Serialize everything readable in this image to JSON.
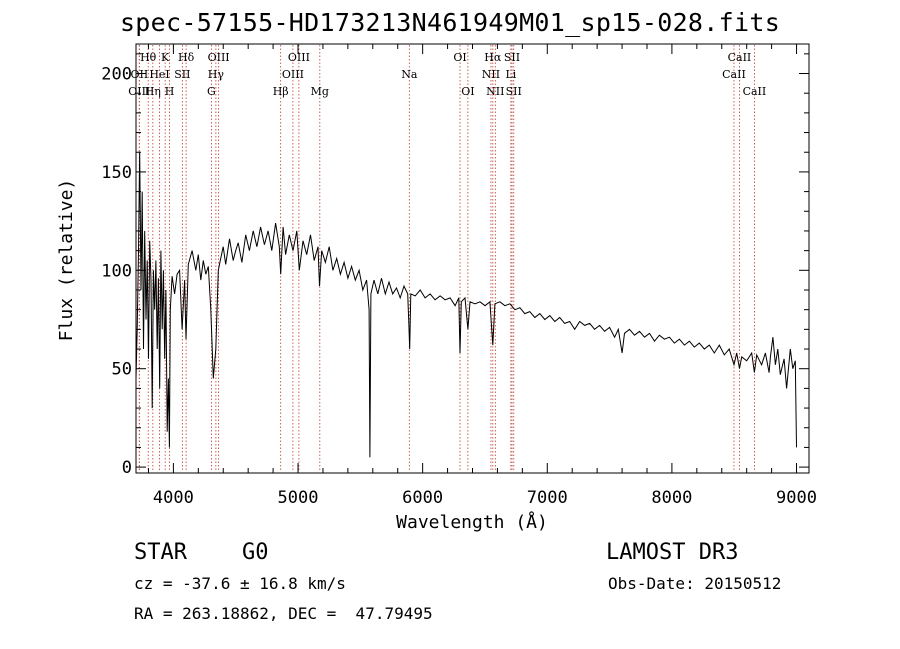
{
  "title": "spec-57155-HD173213N461949M01_sp15-028.fits",
  "info": {
    "object_class": "STAR",
    "subclass": "G0",
    "survey": "LAMOST DR3",
    "cz": "cz = -37.6 ± 16.8 km/s",
    "obs_date": "Obs-Date: 20150512",
    "radec": "RA = 263.18862, DEC =  47.79495"
  },
  "chart_data": {
    "type": "line",
    "title": "spec-57155-HD173213N461949M01_sp15-028.fits",
    "xlabel": "Wavelength (Å)",
    "ylabel": "Flux (relative)",
    "xlim": [
      3700,
      9100
    ],
    "ylim": [
      -3,
      215
    ],
    "xticks": [
      4000,
      5000,
      6000,
      7000,
      8000,
      9000
    ],
    "yticks": [
      0,
      50,
      100,
      150,
      200
    ],
    "spectrum": [
      [
        3700,
        45
      ],
      [
        3710,
        70
      ],
      [
        3720,
        110
      ],
      [
        3730,
        160
      ],
      [
        3740,
        90
      ],
      [
        3750,
        140
      ],
      [
        3760,
        60
      ],
      [
        3770,
        120
      ],
      [
        3780,
        75
      ],
      [
        3790,
        105
      ],
      [
        3800,
        55
      ],
      [
        3810,
        115
      ],
      [
        3820,
        95
      ],
      [
        3830,
        30
      ],
      [
        3840,
        100
      ],
      [
        3850,
        80
      ],
      [
        3860,
        105
      ],
      [
        3870,
        60
      ],
      [
        3880,
        96
      ],
      [
        3890,
        40
      ],
      [
        3900,
        110
      ],
      [
        3910,
        70
      ],
      [
        3920,
        100
      ],
      [
        3930,
        55
      ],
      [
        3940,
        90
      ],
      [
        3950,
        18
      ],
      [
        3960,
        45
      ],
      [
        3968,
        10
      ],
      [
        3975,
        80
      ],
      [
        3990,
        97
      ],
      [
        4010,
        88
      ],
      [
        4030,
        98
      ],
      [
        4050,
        100
      ],
      [
        4070,
        70
      ],
      [
        4090,
        95
      ],
      [
        4101,
        65
      ],
      [
        4120,
        103
      ],
      [
        4150,
        110
      ],
      [
        4180,
        100
      ],
      [
        4200,
        108
      ],
      [
        4220,
        95
      ],
      [
        4240,
        105
      ],
      [
        4260,
        98
      ],
      [
        4280,
        102
      ],
      [
        4300,
        80
      ],
      [
        4320,
        45
      ],
      [
        4340,
        60
      ],
      [
        4360,
        100
      ],
      [
        4380,
        106
      ],
      [
        4400,
        112
      ],
      [
        4420,
        103
      ],
      [
        4450,
        116
      ],
      [
        4480,
        105
      ],
      [
        4500,
        110
      ],
      [
        4520,
        114
      ],
      [
        4550,
        104
      ],
      [
        4580,
        118
      ],
      [
        4610,
        110
      ],
      [
        4640,
        120
      ],
      [
        4670,
        112
      ],
      [
        4700,
        122
      ],
      [
        4730,
        113
      ],
      [
        4760,
        120
      ],
      [
        4790,
        110
      ],
      [
        4820,
        124
      ],
      [
        4850,
        112
      ],
      [
        4861,
        98
      ],
      [
        4880,
        122
      ],
      [
        4900,
        108
      ],
      [
        4930,
        118
      ],
      [
        4960,
        110
      ],
      [
        4990,
        120
      ],
      [
        5010,
        100
      ],
      [
        5040,
        115
      ],
      [
        5070,
        108
      ],
      [
        5100,
        118
      ],
      [
        5130,
        105
      ],
      [
        5160,
        112
      ],
      [
        5172,
        92
      ],
      [
        5190,
        110
      ],
      [
        5220,
        104
      ],
      [
        5250,
        112
      ],
      [
        5280,
        100
      ],
      [
        5310,
        106
      ],
      [
        5340,
        98
      ],
      [
        5370,
        104
      ],
      [
        5400,
        96
      ],
      [
        5430,
        102
      ],
      [
        5460,
        95
      ],
      [
        5490,
        100
      ],
      [
        5520,
        90
      ],
      [
        5550,
        95
      ],
      [
        5570,
        80
      ],
      [
        5577,
        5
      ],
      [
        5585,
        88
      ],
      [
        5610,
        95
      ],
      [
        5640,
        88
      ],
      [
        5670,
        96
      ],
      [
        5700,
        88
      ],
      [
        5730,
        94
      ],
      [
        5760,
        88
      ],
      [
        5790,
        91
      ],
      [
        5820,
        86
      ],
      [
        5850,
        92
      ],
      [
        5880,
        88
      ],
      [
        5890,
        72
      ],
      [
        5896,
        60
      ],
      [
        5905,
        88
      ],
      [
        5940,
        87
      ],
      [
        5980,
        90
      ],
      [
        6020,
        86
      ],
      [
        6060,
        88
      ],
      [
        6100,
        85
      ],
      [
        6140,
        87
      ],
      [
        6180,
        85
      ],
      [
        6220,
        86
      ],
      [
        6260,
        82
      ],
      [
        6290,
        86
      ],
      [
        6300,
        58
      ],
      [
        6310,
        84
      ],
      [
        6340,
        86
      ],
      [
        6363,
        70
      ],
      [
        6380,
        84
      ],
      [
        6420,
        83
      ],
      [
        6460,
        84
      ],
      [
        6500,
        82
      ],
      [
        6540,
        84
      ],
      [
        6563,
        62
      ],
      [
        6580,
        83
      ],
      [
        6620,
        84
      ],
      [
        6660,
        82
      ],
      [
        6700,
        83
      ],
      [
        6740,
        80
      ],
      [
        6780,
        81
      ],
      [
        6820,
        78
      ],
      [
        6860,
        79
      ],
      [
        6900,
        76
      ],
      [
        6940,
        78
      ],
      [
        6980,
        75
      ],
      [
        7020,
        77
      ],
      [
        7060,
        74
      ],
      [
        7100,
        76
      ],
      [
        7140,
        73
      ],
      [
        7180,
        74
      ],
      [
        7220,
        70
      ],
      [
        7260,
        74
      ],
      [
        7300,
        72
      ],
      [
        7340,
        73
      ],
      [
        7380,
        70
      ],
      [
        7420,
        72
      ],
      [
        7460,
        69
      ],
      [
        7500,
        71
      ],
      [
        7540,
        66
      ],
      [
        7570,
        70
      ],
      [
        7600,
        58
      ],
      [
        7620,
        68
      ],
      [
        7660,
        70
      ],
      [
        7700,
        67
      ],
      [
        7740,
        69
      ],
      [
        7780,
        66
      ],
      [
        7820,
        68
      ],
      [
        7860,
        64
      ],
      [
        7900,
        67
      ],
      [
        7940,
        65
      ],
      [
        7980,
        66
      ],
      [
        8020,
        63
      ],
      [
        8060,
        65
      ],
      [
        8100,
        62
      ],
      [
        8140,
        64
      ],
      [
        8180,
        61
      ],
      [
        8220,
        63
      ],
      [
        8260,
        60
      ],
      [
        8300,
        62
      ],
      [
        8340,
        58
      ],
      [
        8380,
        62
      ],
      [
        8420,
        57
      ],
      [
        8460,
        60
      ],
      [
        8498,
        52
      ],
      [
        8520,
        58
      ],
      [
        8542,
        50
      ],
      [
        8560,
        56
      ],
      [
        8600,
        54
      ],
      [
        8640,
        58
      ],
      [
        8662,
        48
      ],
      [
        8680,
        57
      ],
      [
        8720,
        52
      ],
      [
        8750,
        58
      ],
      [
        8780,
        48
      ],
      [
        8790,
        56
      ],
      [
        8810,
        66
      ],
      [
        8830,
        52
      ],
      [
        8850,
        60
      ],
      [
        8870,
        47
      ],
      [
        8900,
        55
      ],
      [
        8920,
        40
      ],
      [
        8950,
        60
      ],
      [
        8970,
        50
      ],
      [
        8990,
        54
      ],
      [
        9000,
        10
      ]
    ],
    "lines": [
      {
        "label": "Hθ",
        "wave": 3798,
        "row": 1
      },
      {
        "label": "OII",
        "wave": 3727,
        "row": 2
      },
      {
        "label": "OIII",
        "wave": 3726,
        "row": 3
      },
      {
        "label": "HeI",
        "wave": 3889,
        "row": 2
      },
      {
        "label": "Hη",
        "wave": 3835,
        "row": 3
      },
      {
        "label": "K",
        "wave": 3934,
        "row": 1
      },
      {
        "label": "SII",
        "wave": 4072,
        "row": 2
      },
      {
        "label": "H",
        "wave": 3969,
        "row": 3
      },
      {
        "label": "Hδ",
        "wave": 4102,
        "row": 1
      },
      {
        "label": "OIII",
        "wave": 4363,
        "row": 1
      },
      {
        "label": "Hγ",
        "wave": 4341,
        "row": 2
      },
      {
        "label": "G",
        "wave": 4305,
        "row": 3
      },
      {
        "label": "Hβ",
        "wave": 4861,
        "row": 3
      },
      {
        "label": "OIII",
        "wave": 5007,
        "row": 1
      },
      {
        "label": "OIII",
        "wave": 4959,
        "row": 2
      },
      {
        "label": "Mg",
        "wave": 5175,
        "row": 3
      },
      {
        "label": "Na",
        "wave": 5893,
        "row": 2
      },
      {
        "label": "OI",
        "wave": 6300,
        "row": 1
      },
      {
        "label": "OI",
        "wave": 6363,
        "row": 3
      },
      {
        "label": "Hα",
        "wave": 6563,
        "row": 1
      },
      {
        "label": "SII",
        "wave": 6717,
        "row": 1
      },
      {
        "label": "NII",
        "wave": 6548,
        "row": 2
      },
      {
        "label": "Li",
        "wave": 6708,
        "row": 2
      },
      {
        "label": "NII",
        "wave": 6583,
        "row": 3
      },
      {
        "label": "SII",
        "wave": 6731,
        "row": 3
      },
      {
        "label": "CaII",
        "wave": 8542,
        "row": 1
      },
      {
        "label": "CaII",
        "wave": 8498,
        "row": 2
      },
      {
        "label": "CaII",
        "wave": 8662,
        "row": 3
      }
    ]
  }
}
